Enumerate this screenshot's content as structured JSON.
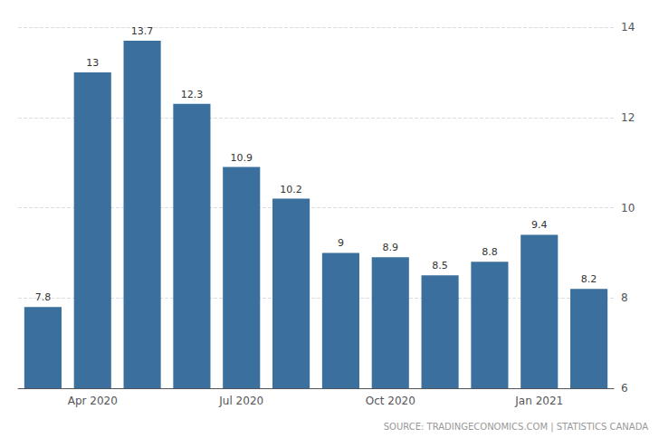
{
  "chart_data": {
    "type": "bar",
    "categories": [
      null,
      "Apr 2020",
      null,
      null,
      "Jul 2020",
      null,
      null,
      "Oct 2020",
      null,
      null,
      "Jan 2021",
      null
    ],
    "values": [
      7.8,
      13.0,
      13.7,
      12.3,
      10.9,
      10.2,
      9.0,
      8.9,
      8.5,
      8.8,
      9.4,
      8.2
    ],
    "value_labels": [
      "7.8",
      "13",
      "13.7",
      "12.3",
      "10.9",
      "10.2",
      "9",
      "8.9",
      "8.5",
      "8.8",
      "9.4",
      "8.2"
    ],
    "data_labels": true,
    "color": "#3a6f9e",
    "ylim": [
      6,
      14
    ],
    "yticks": [
      6,
      8,
      10,
      12,
      14
    ],
    "grid": true,
    "annotation": "SOURCE: TRADINGECONOMICS.COM | STATISTICS CANADA"
  }
}
